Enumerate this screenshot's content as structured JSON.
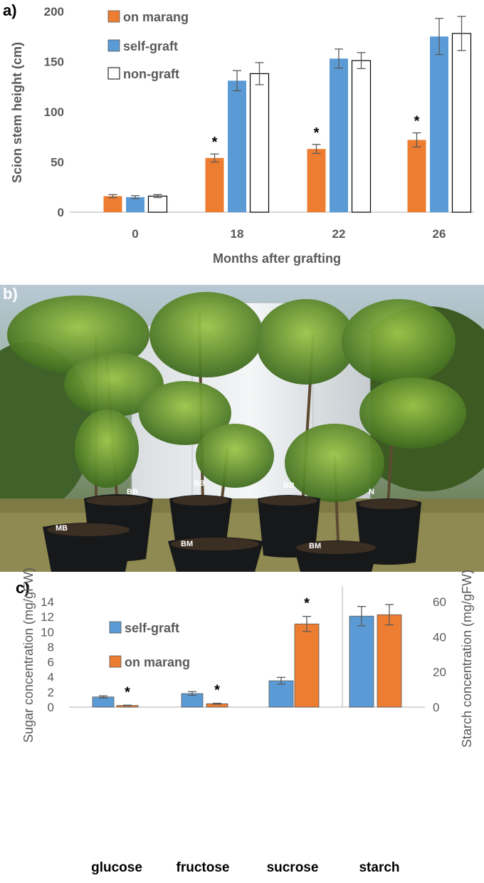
{
  "panel_a": {
    "label": "a)",
    "chart_data": {
      "type": "bar",
      "categories": [
        "0",
        "18",
        "22",
        "26"
      ],
      "xlabel": "Months after grafting",
      "ylabel": "Scion stem height (cm)",
      "ylim": [
        0,
        200
      ],
      "yticks": [
        "0",
        "50",
        "100",
        "150",
        "200"
      ],
      "legend_position": "top-left",
      "series": [
        {
          "name": "on marang",
          "color": "#ED7D31",
          "values": [
            16,
            54,
            63,
            72
          ],
          "errors": [
            1.5,
            4,
            4.5,
            7
          ]
        },
        {
          "name": "self-graft",
          "color": "#5B9BD5",
          "values": [
            15,
            131,
            153,
            175
          ],
          "errors": [
            1.5,
            10,
            9.5,
            18
          ]
        },
        {
          "name": "non-graft",
          "color": "#FFFFFF",
          "values": [
            16,
            138,
            151,
            178
          ],
          "errors": [
            1.5,
            11,
            8,
            17
          ]
        }
      ],
      "annotations": [
        "*",
        "*",
        "*"
      ]
    }
  },
  "panel_b": {
    "label": "b)",
    "plant_labels": [
      "MB",
      "BB",
      "BB",
      "BM",
      "BB",
      "BM",
      "N"
    ]
  },
  "panel_c": {
    "label": "c)",
    "chart_data": {
      "type": "bar",
      "categories": [
        "glucose",
        "fructose",
        "sucrose",
        "starch"
      ],
      "ylabel": "Sugar concentration  (mg/gFW)",
      "ylabel_right": "Starch concentration  (mg/gFW)",
      "ylim": [
        0,
        14
      ],
      "yticks": [
        "0",
        "2",
        "4",
        "6",
        "8",
        "10",
        "12",
        "14"
      ],
      "ylim_right": [
        0,
        60
      ],
      "yticks_right": [
        "0",
        "20",
        "40",
        "60"
      ],
      "legend_position": "top-left",
      "series": [
        {
          "name": "self-graft",
          "color": "#5B9BD5",
          "values": [
            1.35,
            1.8,
            3.5,
            51.8
          ],
          "errors": [
            0.15,
            0.25,
            0.45,
            5.5
          ]
        },
        {
          "name": "on marang",
          "color": "#ED7D31",
          "values": [
            0.22,
            0.45,
            11.05,
            52.6
          ],
          "errors": [
            0.04,
            0.06,
            1.0,
            5.8
          ]
        }
      ],
      "annotations": [
        "*",
        "*",
        "*"
      ]
    }
  }
}
